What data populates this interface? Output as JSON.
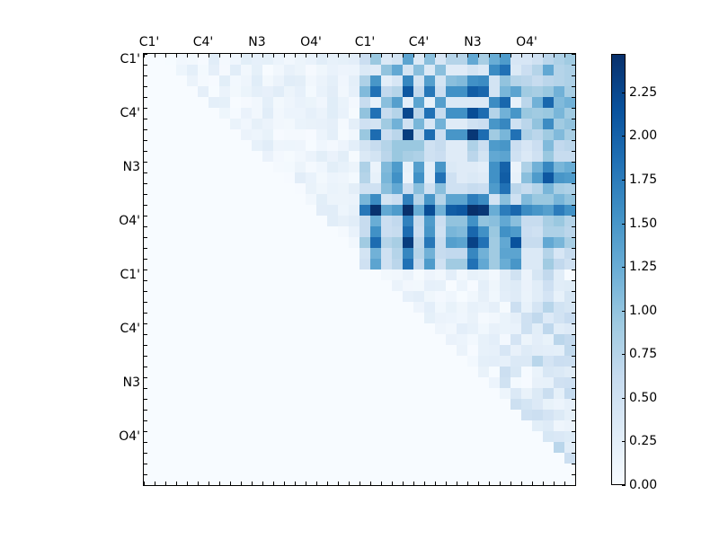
{
  "chart_data": {
    "type": "heatmap",
    "title": "",
    "xlabel": "",
    "ylabel": "",
    "rows": 40,
    "cols": 40,
    "x_tick_labels": [
      "C1'",
      "C4'",
      "N3",
      "O4'",
      "C1'",
      "C4'",
      "N3",
      "O4'"
    ],
    "x_tick_positions": [
      0,
      5,
      10,
      15,
      20,
      25,
      30,
      35
    ],
    "y_tick_labels": [
      "C1'",
      "C4'",
      "N3",
      "O4'",
      "C1'",
      "C4'",
      "N3",
      "O4'"
    ],
    "y_tick_positions": [
      0,
      5,
      10,
      15,
      20,
      25,
      30,
      35
    ],
    "colormap": "Blues",
    "vmin": 0.0,
    "vmax": 2.47,
    "colorbar": {
      "ticks": [
        0.0,
        0.25,
        0.5,
        0.75,
        1.0,
        1.25,
        1.5,
        1.75,
        2.0,
        2.25
      ],
      "tick_labels": [
        "0.00",
        "0.25",
        "0.50",
        "0.75",
        "1.00",
        "1.25",
        "1.50",
        "1.75",
        "2.00",
        "2.25"
      ]
    },
    "upper_right_block_rows_0_19_cols_20_39": [
      [
        0.55,
        0.95,
        0.35,
        0.45,
        1.35,
        0.35,
        1.05,
        0.4,
        0.75,
        0.75,
        1.3,
        0.85,
        1.25,
        1.45,
        0.4,
        0.4,
        0.5,
        0.7,
        0.8,
        0.9
      ],
      [
        0.35,
        0.3,
        1.0,
        1.3,
        0.45,
        1.05,
        0.35,
        1.05,
        0.3,
        0.3,
        0.45,
        0.35,
        1.6,
        1.85,
        0.35,
        0.55,
        0.75,
        1.3,
        0.75,
        0.8
      ],
      [
        0.8,
        1.5,
        0.25,
        0.4,
        1.65,
        0.45,
        1.4,
        0.45,
        1.05,
        1.1,
        1.55,
        1.6,
        0.45,
        1.0,
        0.75,
        0.7,
        0.6,
        0.7,
        0.75,
        0.8
      ],
      [
        1.1,
        1.85,
        0.65,
        0.75,
        2.1,
        0.65,
        1.8,
        0.55,
        1.55,
        1.55,
        2.05,
        1.95,
        0.45,
        1.15,
        1.35,
        0.9,
        0.85,
        0.95,
        1.2,
        0.85
      ],
      [
        0.6,
        0.2,
        1.05,
        1.4,
        0.25,
        1.35,
        0.2,
        1.4,
        0.35,
        0.35,
        0.35,
        0.35,
        1.6,
        1.95,
        0.2,
        0.7,
        1.2,
        1.95,
        1.1,
        1.2
      ],
      [
        1.0,
        1.85,
        0.6,
        0.75,
        2.25,
        0.7,
        1.85,
        0.6,
        1.55,
        1.55,
        2.2,
        1.9,
        0.75,
        1.2,
        1.5,
        0.95,
        0.9,
        0.95,
        1.15,
        0.9
      ],
      [
        0.5,
        0.45,
        0.9,
        1.2,
        0.5,
        1.15,
        0.4,
        1.2,
        0.3,
        0.3,
        0.5,
        0.55,
        1.5,
        1.65,
        0.5,
        0.7,
        1.0,
        1.6,
        0.9,
        1.0
      ],
      [
        0.95,
        1.9,
        0.55,
        0.7,
        2.35,
        0.65,
        1.9,
        0.55,
        1.5,
        1.5,
        2.4,
        1.9,
        0.9,
        1.15,
        1.85,
        0.8,
        0.7,
        0.9,
        1.1,
        0.85
      ],
      [
        0.45,
        0.6,
        0.75,
        0.95,
        0.95,
        0.95,
        0.5,
        0.6,
        0.3,
        0.3,
        0.8,
        0.55,
        1.45,
        1.5,
        0.55,
        0.4,
        0.55,
        1.1,
        0.65,
        0.7
      ],
      [
        0.35,
        0.45,
        0.7,
        0.95,
        0.85,
        0.8,
        0.5,
        0.55,
        0.3,
        0.3,
        0.7,
        0.45,
        1.3,
        1.35,
        0.5,
        0.35,
        0.5,
        0.95,
        0.6,
        0.6
      ],
      [
        0.8,
        0.15,
        1.1,
        1.45,
        0.2,
        1.4,
        0.25,
        1.5,
        0.35,
        0.3,
        0.3,
        0.25,
        1.55,
        2.0,
        0.15,
        0.8,
        1.2,
        1.65,
        1.15,
        1.25
      ],
      [
        0.75,
        0.2,
        1.15,
        1.55,
        0.15,
        1.55,
        0.25,
        1.85,
        0.5,
        0.3,
        0.35,
        0.3,
        1.55,
        2.05,
        0.2,
        1.05,
        1.45,
        2.1,
        1.5,
        1.45
      ],
      [
        0.5,
        0.5,
        1.05,
        1.3,
        0.55,
        1.05,
        0.5,
        1.05,
        0.5,
        0.5,
        0.6,
        0.55,
        1.45,
        1.85,
        0.7,
        0.6,
        0.75,
        1.15,
        0.85,
        0.8
      ],
      [
        1.15,
        1.6,
        0.45,
        0.55,
        1.7,
        0.75,
        1.5,
        0.75,
        1.35,
        1.35,
        1.75,
        1.6,
        0.45,
        1.05,
        0.5,
        1.1,
        0.95,
        0.95,
        1.15,
        1.0
      ],
      [
        1.8,
        2.45,
        1.3,
        1.45,
        2.47,
        1.25,
        2.2,
        1.2,
        2.05,
        2.1,
        2.47,
        2.4,
        1.25,
        1.75,
        1.95,
        1.6,
        1.5,
        1.4,
        1.75,
        1.55
      ],
      [
        0.6,
        1.25,
        0.55,
        0.65,
        1.7,
        0.6,
        1.45,
        0.55,
        1.0,
        1.0,
        1.55,
        1.0,
        1.05,
        1.3,
        1.05,
        0.6,
        0.6,
        0.85,
        0.95,
        0.75
      ],
      [
        0.6,
        1.55,
        0.55,
        0.6,
        1.9,
        0.55,
        1.5,
        0.5,
        1.15,
        1.1,
        1.95,
        1.55,
        0.95,
        1.55,
        1.45,
        0.55,
        0.5,
        0.8,
        0.8,
        0.7
      ],
      [
        0.9,
        1.9,
        0.75,
        0.85,
        2.35,
        0.7,
        1.8,
        0.6,
        1.4,
        1.35,
        2.3,
        1.85,
        0.9,
        1.3,
        2.15,
        0.6,
        0.6,
        1.3,
        1.15,
        0.85
      ],
      [
        0.45,
        1.2,
        0.5,
        0.75,
        1.65,
        0.75,
        1.2,
        0.6,
        0.65,
        0.65,
        1.65,
        1.2,
        0.9,
        1.35,
        1.35,
        0.35,
        0.35,
        0.75,
        0.4,
        0.6
      ],
      [
        0.5,
        1.35,
        0.5,
        0.7,
        1.85,
        0.65,
        1.45,
        0.5,
        0.9,
        0.9,
        1.85,
        1.3,
        0.9,
        1.25,
        1.5,
        0.35,
        0.35,
        0.9,
        0.65,
        0.5
      ]
    ],
    "notes": "Upper triangle-like structure: strong values in rows 0-19 x cols 20-39; faint values (0-0.7) above diagonal elsewhere; lower-left triangle near zero."
  }
}
